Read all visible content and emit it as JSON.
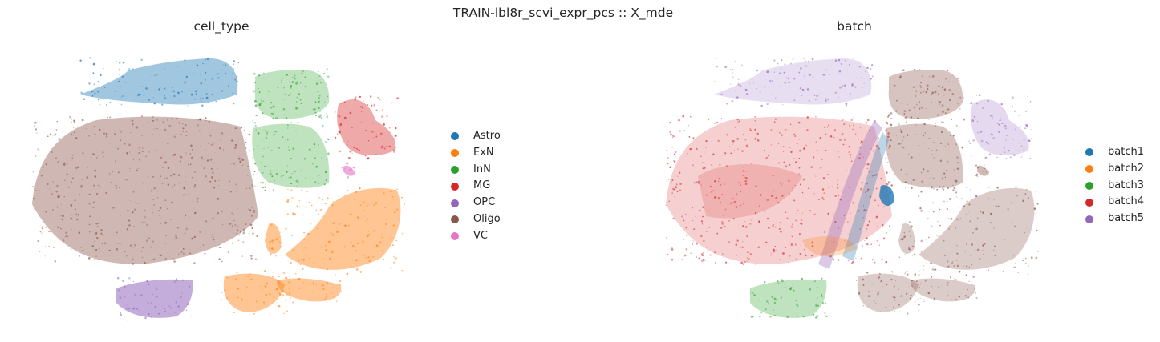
{
  "figure_title": "TRAIN-lbl8r_scvi_expr_pcs :: X_mde",
  "chart_data": [
    {
      "type": "scatter",
      "title": "cell_type",
      "xlabel": "",
      "ylabel": "",
      "grid": false,
      "legend_position": "right",
      "legend": [
        {
          "label": "Astro",
          "color": "#1f77b4"
        },
        {
          "label": "ExN",
          "color": "#ff7f0e"
        },
        {
          "label": "InN",
          "color": "#2ca02c"
        },
        {
          "label": "MG",
          "color": "#d62728"
        },
        {
          "label": "OPC",
          "color": "#9467bd"
        },
        {
          "label": "Oligo",
          "color": "#8c564b"
        },
        {
          "label": "VC",
          "color": "#e377c2"
        }
      ]
    },
    {
      "type": "scatter",
      "title": "batch",
      "xlabel": "",
      "ylabel": "",
      "grid": false,
      "legend_position": "right",
      "legend": [
        {
          "label": "batch1",
          "color": "#1f77b4"
        },
        {
          "label": "batch2",
          "color": "#ff7f0e"
        },
        {
          "label": "batch3",
          "color": "#2ca02c"
        },
        {
          "label": "batch4",
          "color": "#d62728"
        },
        {
          "label": "batch5",
          "color": "#9467bd"
        }
      ]
    }
  ]
}
